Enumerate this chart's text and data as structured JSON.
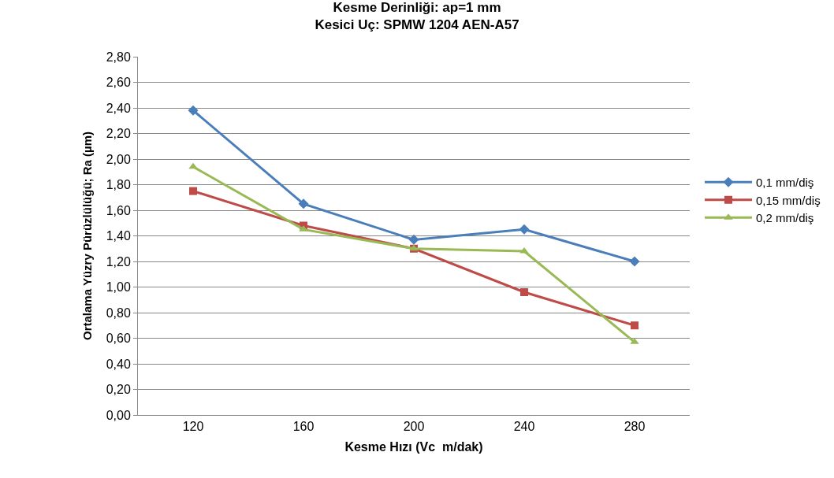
{
  "chart_data": {
    "type": "line",
    "title": "Kesme Derinliği: ap=1 mm\nKesici Uç: SPMW 1204 AEN-A57",
    "xlabel": "Kesme Hızı (Vc  m/dak)",
    "ylabel": "Ortalama Yüzry Pürüzlülüğü; Ra (µm)",
    "categories": [
      "120",
      "160",
      "200",
      "240",
      "280"
    ],
    "series": [
      {
        "name": "0,1 mm/diş",
        "color": "#4a7ebb",
        "marker": "diamond",
        "values": [
          2.38,
          1.65,
          1.37,
          1.45,
          1.2
        ]
      },
      {
        "name": "0,15 mm/diş",
        "color": "#be4b48",
        "marker": "square",
        "values": [
          1.75,
          1.48,
          1.3,
          0.96,
          0.7
        ]
      },
      {
        "name": "0,2 mm/diş",
        "color": "#98b954",
        "marker": "triangle",
        "values": [
          1.94,
          1.45,
          1.3,
          1.28,
          0.57
        ]
      }
    ],
    "ylim": [
      0,
      2.8
    ],
    "yticks": [
      {
        "value": 0,
        "label": "0,00"
      },
      {
        "value": 0.2,
        "label": "0,20"
      },
      {
        "value": 0.4,
        "label": "0,40"
      },
      {
        "value": 0.6,
        "label": "0,60"
      },
      {
        "value": 0.8,
        "label": "0,80"
      },
      {
        "value": 1,
        "label": "1,00"
      },
      {
        "value": 1.2,
        "label": "1,20"
      },
      {
        "value": 1.4,
        "label": "1,40"
      },
      {
        "value": 1.6,
        "label": "1,60"
      },
      {
        "value": 1.8,
        "label": "1,80"
      },
      {
        "value": 2,
        "label": "2,00"
      },
      {
        "value": 2.2,
        "label": "2,20"
      },
      {
        "value": 2.4,
        "label": "2,40"
      },
      {
        "value": 2.6,
        "label": "2,60"
      },
      {
        "value": 2.8,
        "label": "2,80"
      }
    ],
    "grid": "y",
    "legend": "right",
    "line_style": "solid"
  }
}
